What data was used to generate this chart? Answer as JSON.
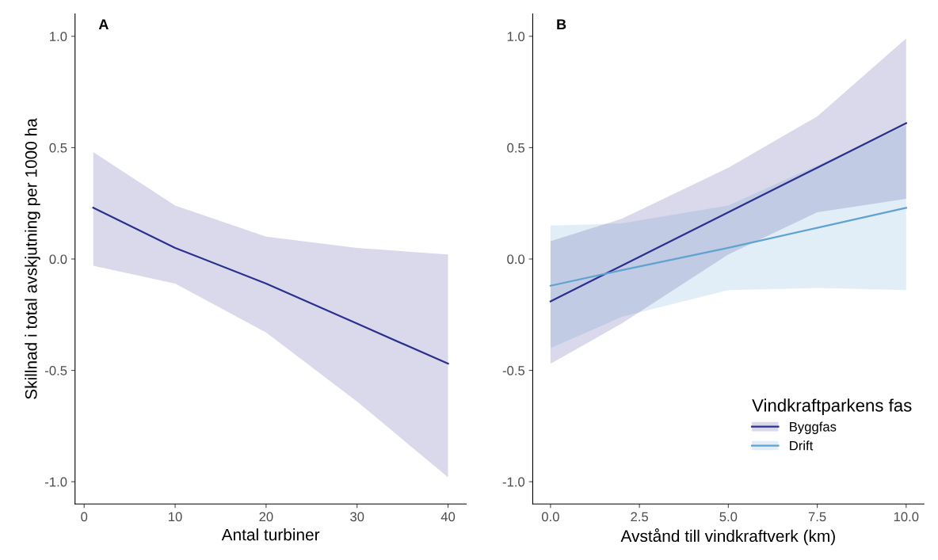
{
  "chart_data": [
    {
      "type": "line",
      "title": "A",
      "xlabel": "Antal turbiner",
      "ylabel": "Skillnad i total avskjutning per 1000 ha",
      "xlim": [
        -1,
        42
      ],
      "xticks": [
        0,
        10,
        20,
        30,
        40
      ],
      "ylim": [
        -1.1,
        1.1
      ],
      "yticks": [
        {
          "value": -1.0,
          "label": "-1.0"
        },
        {
          "value": -0.5,
          "label": "-0.5"
        },
        {
          "value": 0.0,
          "label": "0.0"
        },
        {
          "value": 0.5,
          "label": "0.5"
        },
        {
          "value": 1.0,
          "label": "1.0"
        }
      ],
      "grid": false,
      "legend": false,
      "series": [
        {
          "color": "#2b2f8f",
          "x": [
            1,
            10,
            20,
            30,
            40
          ],
          "values": [
            0.23,
            0.05,
            -0.11,
            -0.29,
            -0.47
          ],
          "lower": [
            -0.03,
            -0.11,
            -0.33,
            -0.64,
            -0.98
          ],
          "upper": [
            0.48,
            0.24,
            0.1,
            0.05,
            0.02
          ]
        }
      ]
    },
    {
      "type": "line",
      "title": "B",
      "xlabel": "Avstånd till vindkraftverk (km)",
      "xlim": [
        -0.5,
        10.5
      ],
      "xticks": [
        {
          "value": 0,
          "label": "0.0"
        },
        2.5,
        {
          "value": 5,
          "label": "5.0"
        },
        7.5,
        {
          "value": 10,
          "label": "10.0"
        }
      ],
      "ylim": [
        -1.1,
        1.1
      ],
      "yticks": [
        {
          "value": -1.0,
          "label": "-1.0"
        },
        {
          "value": -0.5,
          "label": "-0.5"
        },
        {
          "value": 0.0,
          "label": "0.0"
        },
        {
          "value": 0.5,
          "label": "0.5"
        },
        {
          "value": 1.0,
          "label": "1.0"
        }
      ],
      "grid": false,
      "legend": "bottom right",
      "legend_title": "Vindkraftparkens fas",
      "series": [
        {
          "name": "Byggfas",
          "color": "#2b2f8f",
          "x": [
            0,
            2,
            5,
            7.5,
            10
          ],
          "values": [
            -0.19,
            -0.03,
            0.21,
            0.41,
            0.61
          ],
          "lower": [
            -0.47,
            -0.29,
            0.02,
            0.21,
            0.27
          ],
          "upper": [
            0.08,
            0.18,
            0.41,
            0.64,
            0.99
          ]
        },
        {
          "name": "Drift",
          "color": "#5fa3d0",
          "x": [
            0,
            2,
            5,
            7.5,
            10
          ],
          "values": [
            -0.12,
            -0.05,
            0.05,
            0.14,
            0.23
          ],
          "lower": [
            -0.4,
            -0.26,
            -0.14,
            -0.13,
            -0.14
          ],
          "upper": [
            0.15,
            0.16,
            0.24,
            0.42,
            0.6
          ]
        }
      ]
    }
  ]
}
